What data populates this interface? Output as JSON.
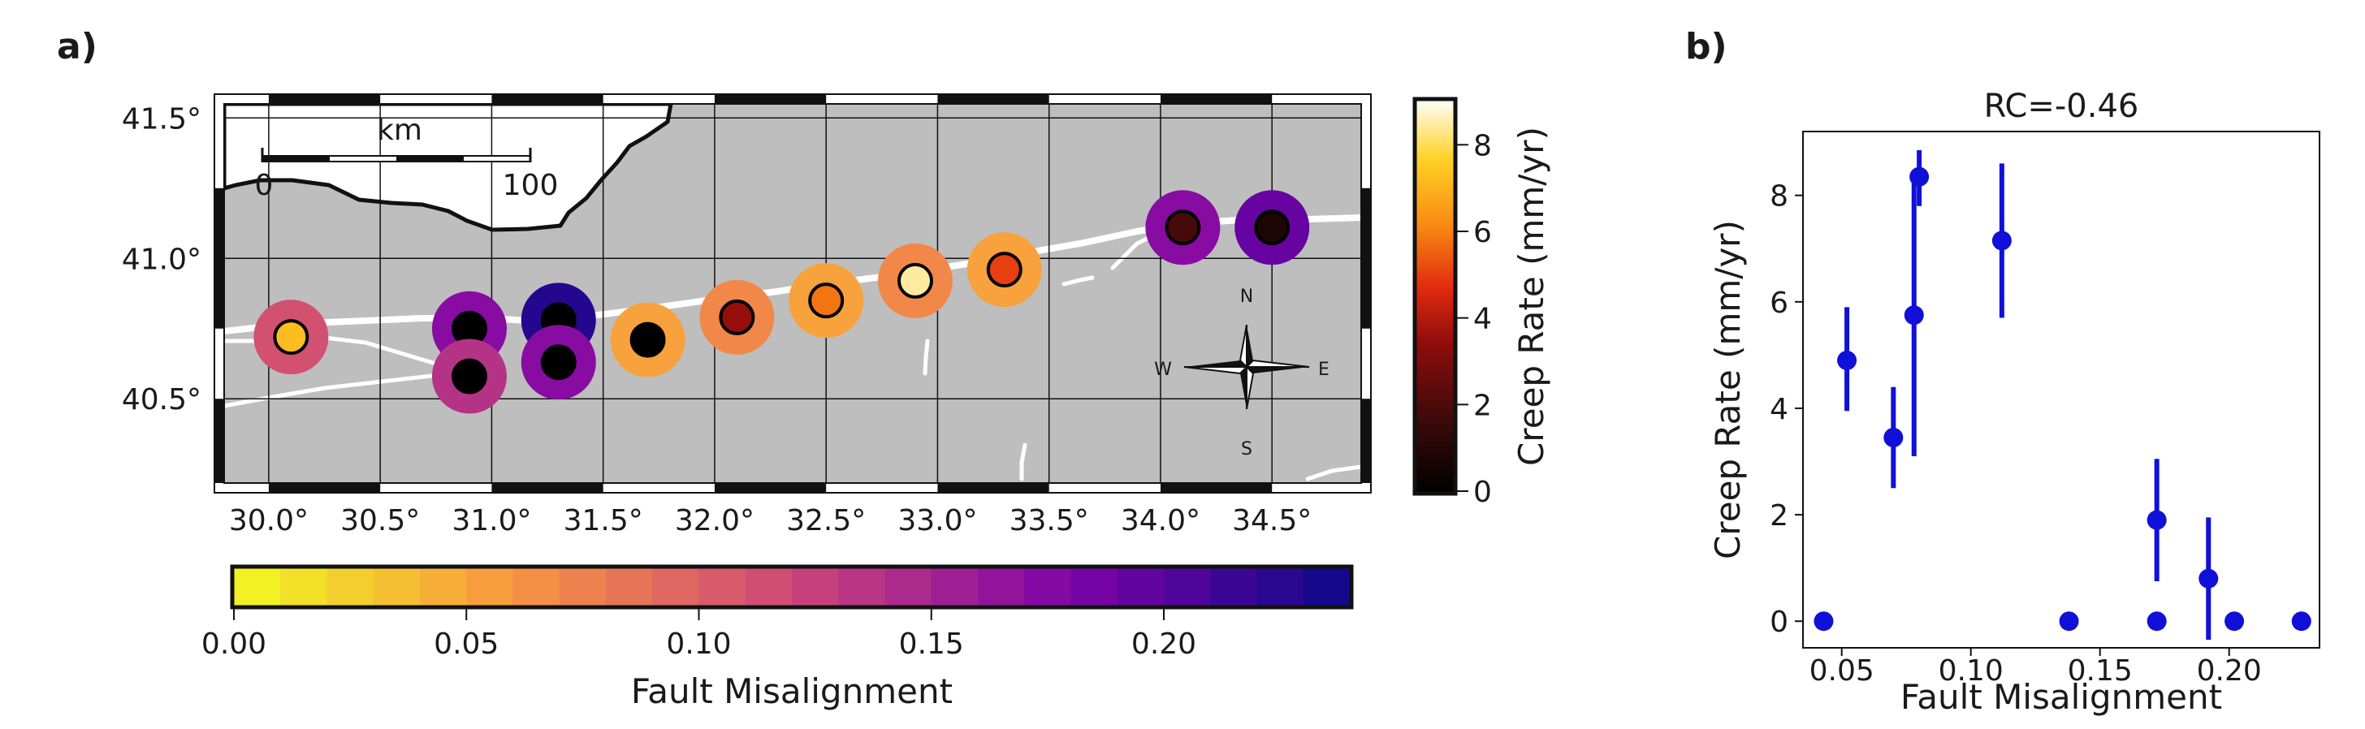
{
  "panel_a": {
    "label": "a)",
    "scale_bar": {
      "title": "km",
      "start": "0",
      "end": "100"
    },
    "compass": {
      "n": "N",
      "s": "S",
      "w": "W",
      "e": "E"
    },
    "lon_ticks": [
      "30.0°",
      "30.5°",
      "31.0°",
      "31.5°",
      "32.0°",
      "32.5°",
      "33.0°",
      "33.5°",
      "34.0°",
      "34.5°"
    ],
    "lat_ticks": [
      "41.5°",
      "41.0°",
      "40.5°"
    ],
    "colors": {
      "land": "#bebebe",
      "fault": "#ffffff",
      "coast": "#111111"
    }
  },
  "creep_colorbar": {
    "label": "Creep Rate (mm/yr)",
    "ticks": [
      "0",
      "2",
      "4",
      "6",
      "8"
    ],
    "range": [
      0,
      9
    ]
  },
  "misalign_colorbar": {
    "label": "Fault Misalignment",
    "ticks": [
      "0.00",
      "0.05",
      "0.10",
      "0.15",
      "0.20"
    ],
    "range": [
      0,
      0.24
    ]
  },
  "chart_data": [
    {
      "type": "scatter",
      "panel": "a",
      "xlim": [
        29.8,
        34.9
      ],
      "ylim": [
        40.2,
        41.55
      ],
      "grid": true,
      "x": [
        30.1,
        30.9,
        30.9,
        31.3,
        31.3,
        31.7,
        32.1,
        32.5,
        32.9,
        33.3,
        34.1,
        34.5
      ],
      "y": [
        40.72,
        40.75,
        40.58,
        40.78,
        40.63,
        40.71,
        40.79,
        40.85,
        40.92,
        40.96,
        41.11,
        41.11
      ],
      "creep_rate": [
        7.2,
        0,
        0,
        0,
        0,
        0,
        3.5,
        5.8,
        8.4,
        5.0,
        1.9,
        0.8
      ],
      "fault_misalignment": [
        0.112,
        0.172,
        0.138,
        0.228,
        0.172,
        0.052,
        0.07,
        0.052,
        0.07,
        0.052,
        0.172,
        0.192
      ]
    },
    {
      "type": "scatter",
      "panel": "b",
      "label": "b)",
      "title": "RC=-0.46",
      "xlabel": "Fault Misalignment",
      "ylabel": "Creep Rate (mm/yr)",
      "xlim": [
        0.035,
        0.235
      ],
      "ylim": [
        -0.5,
        9.2
      ],
      "x_ticks": [
        "0.05",
        "0.10",
        "0.15",
        "0.20"
      ],
      "y_ticks": [
        "0",
        "2",
        "4",
        "6",
        "8"
      ],
      "grid": false,
      "point_color": "#1010d8",
      "x": [
        0.043,
        0.052,
        0.07,
        0.078,
        0.08,
        0.112,
        0.138,
        0.172,
        0.172,
        0.192,
        0.202,
        0.228
      ],
      "y": [
        0,
        4.9,
        3.45,
        5.75,
        8.35,
        7.15,
        0,
        1.9,
        0,
        0.8,
        0,
        0
      ],
      "err_low": [
        null,
        3.95,
        2.5,
        3.1,
        7.8,
        5.7,
        null,
        0.75,
        null,
        -0.35,
        null,
        null
      ],
      "err_high": [
        null,
        5.9,
        4.4,
        8.4,
        8.85,
        8.6,
        null,
        3.05,
        null,
        1.95,
        null,
        null
      ]
    }
  ]
}
